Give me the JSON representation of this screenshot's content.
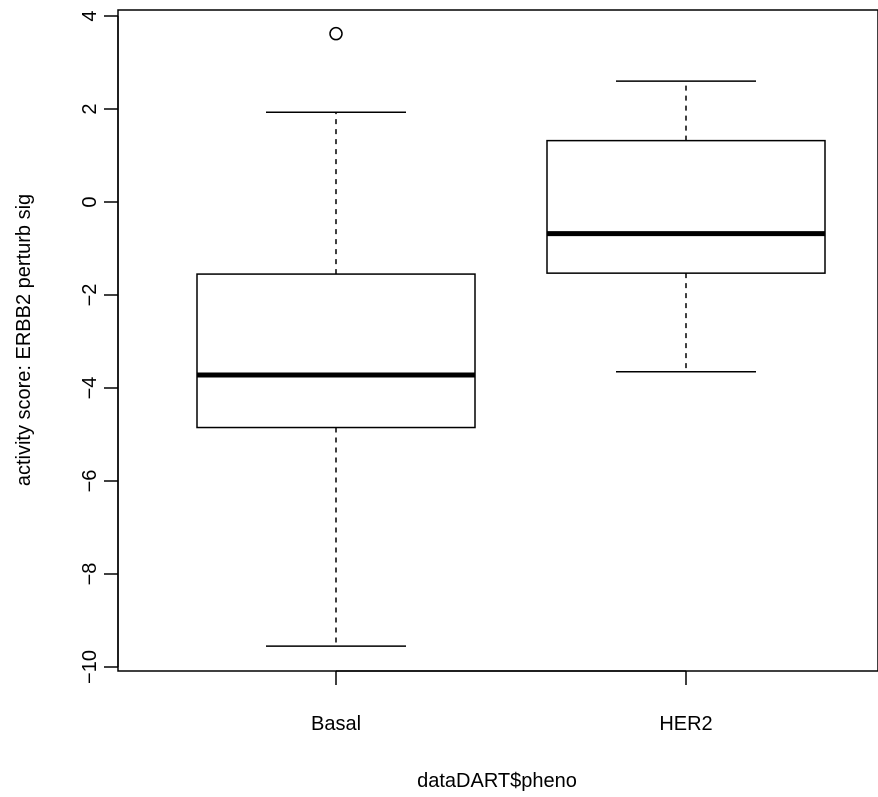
{
  "chart_data": {
    "type": "boxplot",
    "title": "",
    "xlabel": "dataDART$pheno",
    "ylabel": "activity score: ERBB2 perturb sig",
    "ylim": [
      -10.2,
      4.3
    ],
    "y_ticks": [
      -10,
      -8,
      -6,
      -4,
      -2,
      0,
      2,
      4
    ],
    "y_tick_labels": [
      "−10",
      "−8",
      "−6",
      "−4",
      "−2",
      "0",
      "2",
      "4"
    ],
    "grid": false,
    "categories": [
      "Basal",
      "HER2"
    ],
    "boxes": [
      {
        "category": "Basal",
        "whisker_low": -9.55,
        "q1": -4.85,
        "median": -3.72,
        "q3": -1.55,
        "whisker_high": 1.93,
        "outliers": [
          3.62
        ]
      },
      {
        "category": "HER2",
        "whisker_low": -3.65,
        "q1": -1.53,
        "median": -0.68,
        "q3": 1.32,
        "whisker_high": 2.6,
        "outliers": []
      }
    ]
  }
}
